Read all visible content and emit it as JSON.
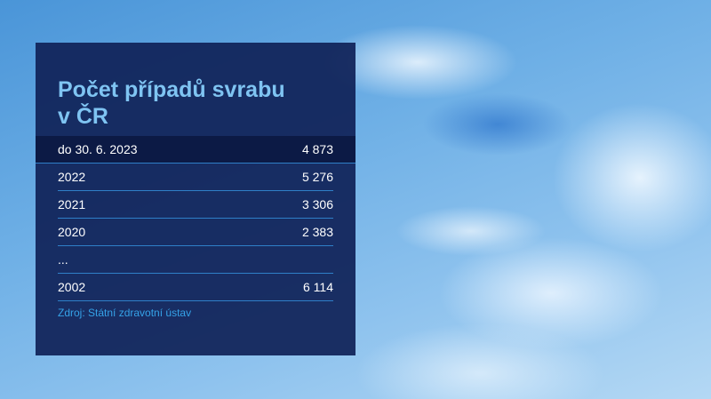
{
  "header": {
    "title": "Počet případů svrabu\nv ČR"
  },
  "table": {
    "rows": [
      [
        "do 30. 6. 2023",
        "4 873"
      ],
      [
        "2022",
        "5 276"
      ],
      [
        "2021",
        "3 306"
      ],
      [
        "2020",
        "2 383"
      ],
      [
        "..."
      ],
      [
        "2002",
        "6 114"
      ]
    ]
  },
  "source": "Zdroj: Státní zdravotní ústav"
}
